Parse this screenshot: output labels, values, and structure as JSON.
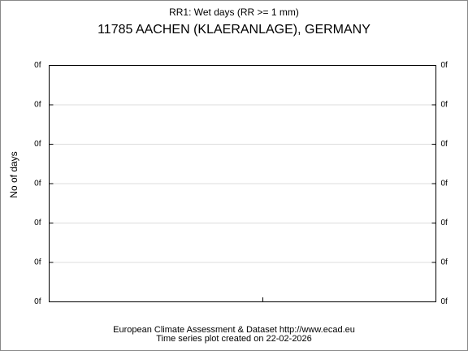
{
  "chart_data": {
    "type": "line",
    "title": "RR1: Wet days (RR >= 1 mm)",
    "subtitle": "11785 AACHEN (KLAERANLAGE), GERMANY",
    "ylabel": "No of days",
    "ytick_labels": [
      "0f",
      "0f",
      "0f",
      "0f",
      "0f",
      "0f",
      "0f"
    ],
    "grid": true,
    "footer": [
      "European Climate Assessment & Dataset  http://www.ecad.eu",
      "Time series plot created on 22-02-2026"
    ]
  }
}
